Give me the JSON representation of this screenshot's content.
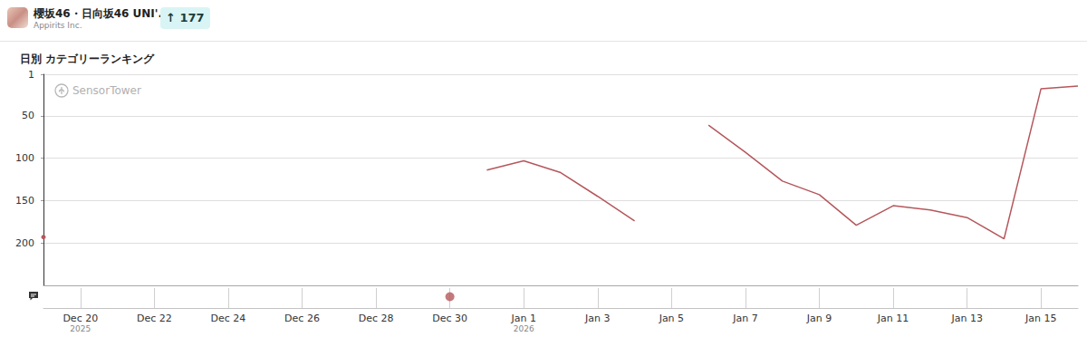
{
  "header": {
    "app_name": "櫻坂46・日向坂46 UNI'...",
    "developer": "Appirits Inc.",
    "rank_change": {
      "value": 177,
      "label": "↑ 177"
    },
    "watermark": "SensorTower"
  },
  "chart_data": {
    "type": "line",
    "title": "日別 カテゴリーランキング",
    "categories": [
      null,
      "Dec 20",
      null,
      "Dec 22",
      null,
      "Dec 24",
      null,
      "Dec 26",
      null,
      "Dec 28",
      null,
      "Dec 30",
      null,
      "Jan 1",
      null,
      "Jan 3",
      null,
      "Jan 5",
      null,
      "Jan 7",
      null,
      "Jan 9",
      null,
      "Jan 11",
      null,
      "Jan 13",
      null,
      "Jan 15",
      null
    ],
    "year_labels": {
      "Dec 20": "2025",
      "Jan 1": "2026"
    },
    "values": [
      193,
      null,
      null,
      null,
      null,
      null,
      null,
      null,
      null,
      null,
      null,
      null,
      114,
      103,
      117,
      145,
      174,
      null,
      61,
      93,
      127,
      143,
      179,
      156,
      161,
      170,
      195,
      18,
      15
    ],
    "color": "#b5575c",
    "event_markers": [
      "Dec 30"
    ],
    "ylim": [
      1,
      250
    ],
    "yticks": [
      1,
      50,
      100,
      150,
      200
    ],
    "grid": true
  }
}
